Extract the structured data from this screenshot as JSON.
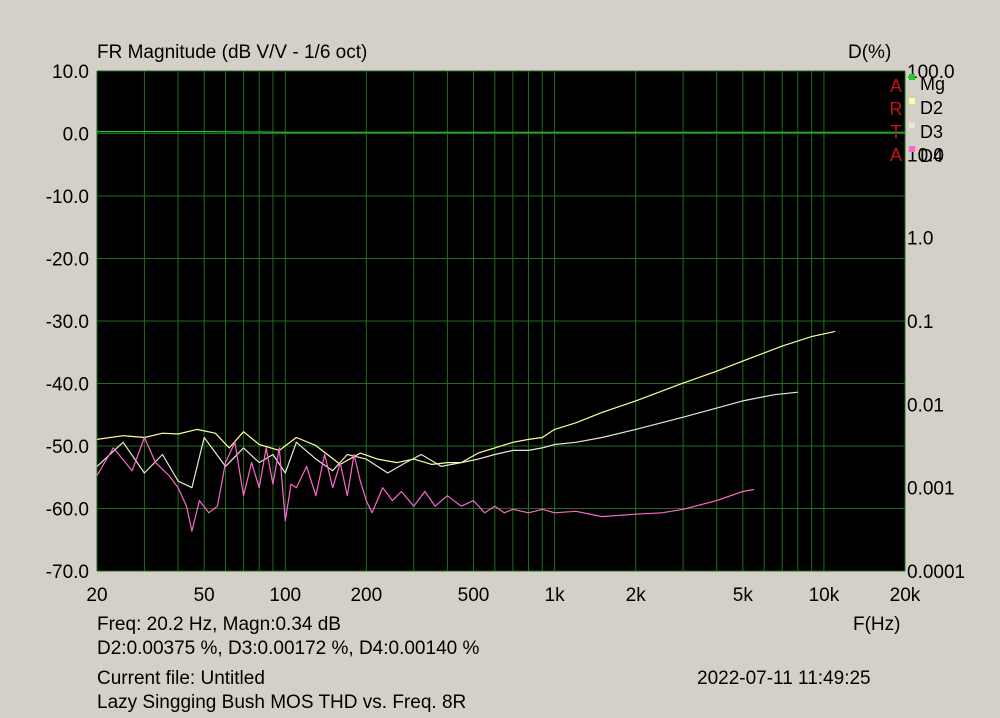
{
  "chart_data": {
    "type": "line",
    "title": "FR Magnitude (dB V/V - 1/6 oct)",
    "right_axis_title": "D(%)",
    "xlabel": "F(Hz)",
    "x_scale": "log",
    "xlim": [
      20,
      20000
    ],
    "ylim": [
      -70,
      10
    ],
    "y_ticks": [
      "10.0",
      "0.0",
      "-10.0",
      "-20.0",
      "-30.0",
      "-40.0",
      "-50.0",
      "-60.0",
      "-70.0"
    ],
    "y2_scale": "log",
    "y2lim": [
      0.0001,
      100
    ],
    "y2_ticks": [
      "100.0",
      "10.0",
      "1.0",
      "0.1",
      "0.01",
      "0.001",
      "0.0001"
    ],
    "x_ticks": [
      "20",
      "50",
      "100",
      "200",
      "500",
      "1k",
      "2k",
      "5k",
      "10k",
      "20k"
    ],
    "watermark": "ARTA",
    "grid": true,
    "legend_position": "top-right",
    "series": [
      {
        "name": "Mg",
        "axis": "left",
        "color": "#22cc22",
        "x": [
          20,
          50,
          100,
          500,
          1000,
          5000,
          7000,
          10000,
          20000
        ],
        "y": [
          0.3,
          0.3,
          0.2,
          0.2,
          0.2,
          0.2,
          0.2,
          0.2,
          0.2
        ]
      },
      {
        "name": "D2",
        "axis": "right",
        "color": "#ffff99",
        "x": [
          20,
          25,
          30,
          35,
          40,
          47,
          55,
          62,
          70,
          80,
          95,
          110,
          130,
          160,
          190,
          220,
          260,
          300,
          350,
          400,
          450,
          520,
          600,
          700,
          800,
          900,
          1000,
          1200,
          1500,
          2000,
          3000,
          4000,
          5000,
          7000,
          9000,
          11000
        ],
        "y": [
          0.0038,
          0.0042,
          0.004,
          0.0045,
          0.0044,
          0.005,
          0.0045,
          0.003,
          0.0047,
          0.0033,
          0.0028,
          0.004,
          0.0032,
          0.0019,
          0.0026,
          0.0022,
          0.002,
          0.0022,
          0.0019,
          0.002,
          0.002,
          0.0026,
          0.003,
          0.0035,
          0.0038,
          0.004,
          0.005,
          0.006,
          0.008,
          0.011,
          0.018,
          0.025,
          0.033,
          0.05,
          0.065,
          0.075
        ]
      },
      {
        "name": "D3",
        "axis": "right",
        "color": "#e8e8d0",
        "x": [
          20,
          25,
          30,
          35,
          40,
          45,
          50,
          60,
          70,
          80,
          90,
          100,
          110,
          130,
          150,
          170,
          200,
          240,
          280,
          320,
          380,
          450,
          520,
          600,
          700,
          800,
          900,
          1000,
          1200,
          1500,
          2000,
          3000,
          4000,
          5000,
          6500,
          8000
        ],
        "y": [
          0.0018,
          0.0035,
          0.0015,
          0.0025,
          0.0012,
          0.001,
          0.004,
          0.0018,
          0.003,
          0.002,
          0.0025,
          0.0015,
          0.0035,
          0.0022,
          0.0016,
          0.0025,
          0.0022,
          0.0015,
          0.002,
          0.0025,
          0.0018,
          0.002,
          0.0022,
          0.0025,
          0.0028,
          0.0028,
          0.003,
          0.0033,
          0.0035,
          0.004,
          0.005,
          0.007,
          0.009,
          0.011,
          0.013,
          0.014
        ]
      },
      {
        "name": "D4",
        "axis": "right",
        "color": "#ff66cc",
        "x": [
          20,
          23,
          27,
          30,
          33,
          37,
          40,
          43,
          45,
          48,
          52,
          56,
          60,
          65,
          70,
          75,
          80,
          85,
          90,
          95,
          100,
          105,
          110,
          120,
          130,
          140,
          150,
          160,
          170,
          180,
          190,
          200,
          210,
          230,
          250,
          270,
          300,
          330,
          360,
          400,
          450,
          500,
          550,
          600,
          650,
          700,
          800,
          900,
          1000,
          1200,
          1500,
          2000,
          2500,
          3000,
          4000,
          5000,
          5500
        ],
        "y": [
          0.0014,
          0.003,
          0.0016,
          0.004,
          0.002,
          0.0014,
          0.001,
          0.0006,
          0.0003,
          0.0007,
          0.0005,
          0.0006,
          0.002,
          0.0035,
          0.0008,
          0.002,
          0.001,
          0.003,
          0.0011,
          0.003,
          0.0004,
          0.0011,
          0.001,
          0.0018,
          0.0008,
          0.0025,
          0.001,
          0.002,
          0.0008,
          0.0025,
          0.0012,
          0.0007,
          0.0005,
          0.001,
          0.0007,
          0.0009,
          0.0006,
          0.0009,
          0.0006,
          0.0008,
          0.0006,
          0.0007,
          0.0005,
          0.0006,
          0.0005,
          0.00055,
          0.0005,
          0.00055,
          0.0005,
          0.00052,
          0.00045,
          0.00048,
          0.0005,
          0.00055,
          0.0007,
          0.0009,
          0.00095
        ]
      }
    ]
  },
  "footer": {
    "cursor_line1": "Freq: 20.2 Hz, Magn:0.34 dB",
    "cursor_line2": "D2:0.00375 %, D3:0.00172 %, D4:0.00140 %",
    "current_file": "Current file: Untitled",
    "description": "Lazy Singging Bush MOS THD vs. Freq.  8R",
    "datetime": "2022-07-11   11:49:25"
  },
  "colors": {
    "plot_background": "#000000",
    "grid": "#1e6e1e",
    "watermark": "#cc1111",
    "window_background": "#d4d0c8"
  }
}
